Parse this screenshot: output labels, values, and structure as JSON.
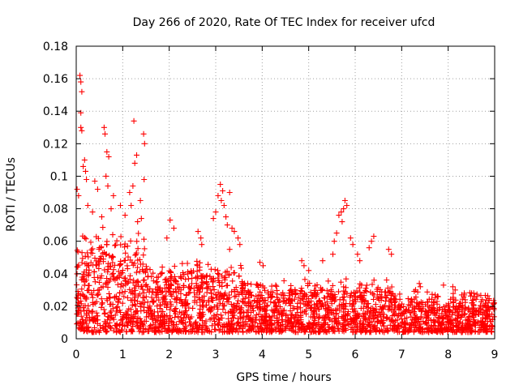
{
  "chart_data": {
    "type": "scatter",
    "title": "Day 266 of 2020, Rate Of TEC Index for receiver ufcd",
    "xlabel": "GPS time / hours",
    "ylabel": "ROTI / TECUs",
    "xlim": [
      0,
      9
    ],
    "ylim": [
      0,
      0.18
    ],
    "xticks": [
      0,
      1,
      2,
      3,
      4,
      5,
      6,
      7,
      8,
      9
    ],
    "xtick_labels": [
      "0",
      "1",
      "2",
      "3",
      "4",
      "5",
      "6",
      "7",
      "8",
      "9"
    ],
    "yticks": [
      0,
      0.02,
      0.04,
      0.06,
      0.08,
      0.1,
      0.12,
      0.14,
      0.16,
      0.18
    ],
    "ytick_labels": [
      "0",
      "0.02",
      "0.04",
      "0.06",
      "0.08",
      "0.1",
      "0.12",
      "0.14",
      "0.16",
      "0.18"
    ],
    "grid": true,
    "marker": "+",
    "marker_color": "#ff0000",
    "series": [
      {
        "name": "ROTI",
        "points": [
          [
            0.08,
            0.162
          ],
          [
            0.1,
            0.158
          ],
          [
            0.12,
            0.152
          ],
          [
            0.1,
            0.139
          ],
          [
            0.1,
            0.13
          ],
          [
            0.12,
            0.128
          ],
          [
            0.02,
            0.092
          ],
          [
            0.05,
            0.088
          ],
          [
            0.15,
            0.106
          ],
          [
            0.18,
            0.11
          ],
          [
            0.2,
            0.103
          ],
          [
            0.22,
            0.098
          ],
          [
            0.6,
            0.13
          ],
          [
            0.62,
            0.126
          ],
          [
            0.66,
            0.115
          ],
          [
            0.7,
            0.112
          ],
          [
            0.64,
            0.1
          ],
          [
            0.68,
            0.094
          ],
          [
            1.24,
            0.134
          ],
          [
            1.45,
            0.126
          ],
          [
            1.47,
            0.12
          ],
          [
            1.3,
            0.113
          ],
          [
            1.26,
            0.108
          ],
          [
            1.46,
            0.098
          ],
          [
            0.4,
            0.097
          ],
          [
            0.46,
            0.092
          ],
          [
            0.8,
            0.088
          ],
          [
            1.15,
            0.09
          ],
          [
            1.22,
            0.094
          ],
          [
            1.38,
            0.085
          ],
          [
            0.25,
            0.082
          ],
          [
            0.35,
            0.078
          ],
          [
            0.55,
            0.075
          ],
          [
            0.75,
            0.08
          ],
          [
            0.95,
            0.082
          ],
          [
            1.05,
            0.076
          ],
          [
            1.18,
            0.082
          ],
          [
            1.32,
            0.072
          ],
          [
            1.4,
            0.074
          ],
          [
            2.02,
            0.073
          ],
          [
            2.1,
            0.068
          ],
          [
            1.95,
            0.062
          ],
          [
            2.62,
            0.066
          ],
          [
            2.68,
            0.062
          ],
          [
            2.7,
            0.058
          ],
          [
            3.1,
            0.095
          ],
          [
            3.15,
            0.091
          ],
          [
            3.3,
            0.09
          ],
          [
            3.05,
            0.088
          ],
          [
            3.12,
            0.085
          ],
          [
            3.18,
            0.082
          ],
          [
            3.0,
            0.078
          ],
          [
            2.95,
            0.074
          ],
          [
            3.22,
            0.075
          ],
          [
            3.25,
            0.07
          ],
          [
            3.35,
            0.068
          ],
          [
            3.4,
            0.066
          ],
          [
            3.48,
            0.062
          ],
          [
            3.52,
            0.058
          ],
          [
            3.3,
            0.055
          ],
          [
            5.78,
            0.085
          ],
          [
            5.82,
            0.082
          ],
          [
            5.75,
            0.08
          ],
          [
            5.7,
            0.078
          ],
          [
            5.65,
            0.076
          ],
          [
            5.72,
            0.072
          ],
          [
            5.6,
            0.065
          ],
          [
            5.9,
            0.062
          ],
          [
            6.4,
            0.063
          ],
          [
            6.35,
            0.06
          ],
          [
            6.3,
            0.056
          ],
          [
            6.72,
            0.055
          ],
          [
            6.78,
            0.052
          ],
          [
            5.55,
            0.06
          ],
          [
            5.95,
            0.058
          ],
          [
            6.05,
            0.052
          ],
          [
            6.1,
            0.048
          ],
          [
            4.85,
            0.048
          ],
          [
            4.9,
            0.045
          ],
          [
            3.95,
            0.047
          ],
          [
            4.02,
            0.045
          ],
          [
            5.3,
            0.048
          ],
          [
            5.0,
            0.042
          ],
          [
            5.52,
            0.052
          ],
          [
            7.38,
            0.034
          ],
          [
            7.4,
            0.032
          ],
          [
            7.9,
            0.033
          ],
          [
            8.1,
            0.032
          ],
          [
            8.15,
            0.03
          ],
          [
            8.55,
            0.028
          ],
          [
            7.3,
            0.03
          ],
          [
            8.35,
            0.027
          ],
          [
            8.62,
            0.026
          ],
          [
            7.72,
            0.027
          ]
        ]
      }
    ]
  }
}
